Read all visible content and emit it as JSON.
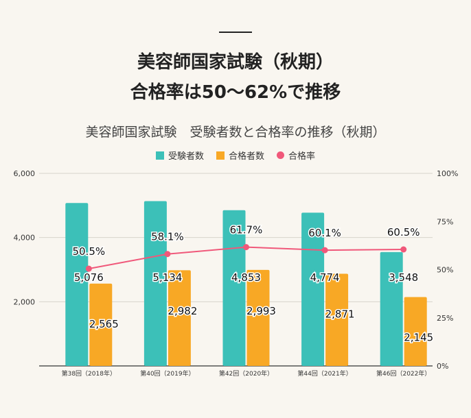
{
  "header": {
    "title_line1": "美容師国家試験（秋期）",
    "title_line2": "合格率は50～62%で推移"
  },
  "chart_data": {
    "type": "bar+line",
    "title": "美容師国家試験　受験者数と合格率の推移（秋期）",
    "categories": [
      "第38回（2018年）",
      "第40回（2019年）",
      "第42回（2020年）",
      "第44回（2021年）",
      "第46回（2022年）"
    ],
    "series": [
      {
        "name": "受験者数",
        "type": "bar",
        "axis": "left",
        "color": "#3cc0b8",
        "values": [
          5076,
          5134,
          4853,
          4774,
          3548
        ],
        "labels": [
          "5,076",
          "5,134",
          "4,853",
          "4,774",
          "3,548"
        ]
      },
      {
        "name": "合格者数",
        "type": "bar",
        "axis": "left",
        "color": "#f8a825",
        "values": [
          2565,
          2982,
          2993,
          2871,
          2145
        ],
        "labels": [
          "2,565",
          "2,982",
          "2,993",
          "2,871",
          "2,145"
        ]
      },
      {
        "name": "合格率",
        "type": "line",
        "axis": "right",
        "color": "#f0587a",
        "values": [
          50.5,
          58.1,
          61.7,
          60.1,
          60.5
        ],
        "labels": [
          "50.5%",
          "58.1%",
          "61.7%",
          "60.1%",
          "60.5%"
        ]
      }
    ],
    "y_left": {
      "range": [
        0,
        6000
      ],
      "ticks": [
        "6,000",
        "4,000",
        "2,000"
      ]
    },
    "y_right": {
      "range": [
        0,
        100
      ],
      "ticks": [
        "100%",
        "75%",
        "50%",
        "25%",
        "0%"
      ]
    },
    "grid": true,
    "legend": "top"
  }
}
